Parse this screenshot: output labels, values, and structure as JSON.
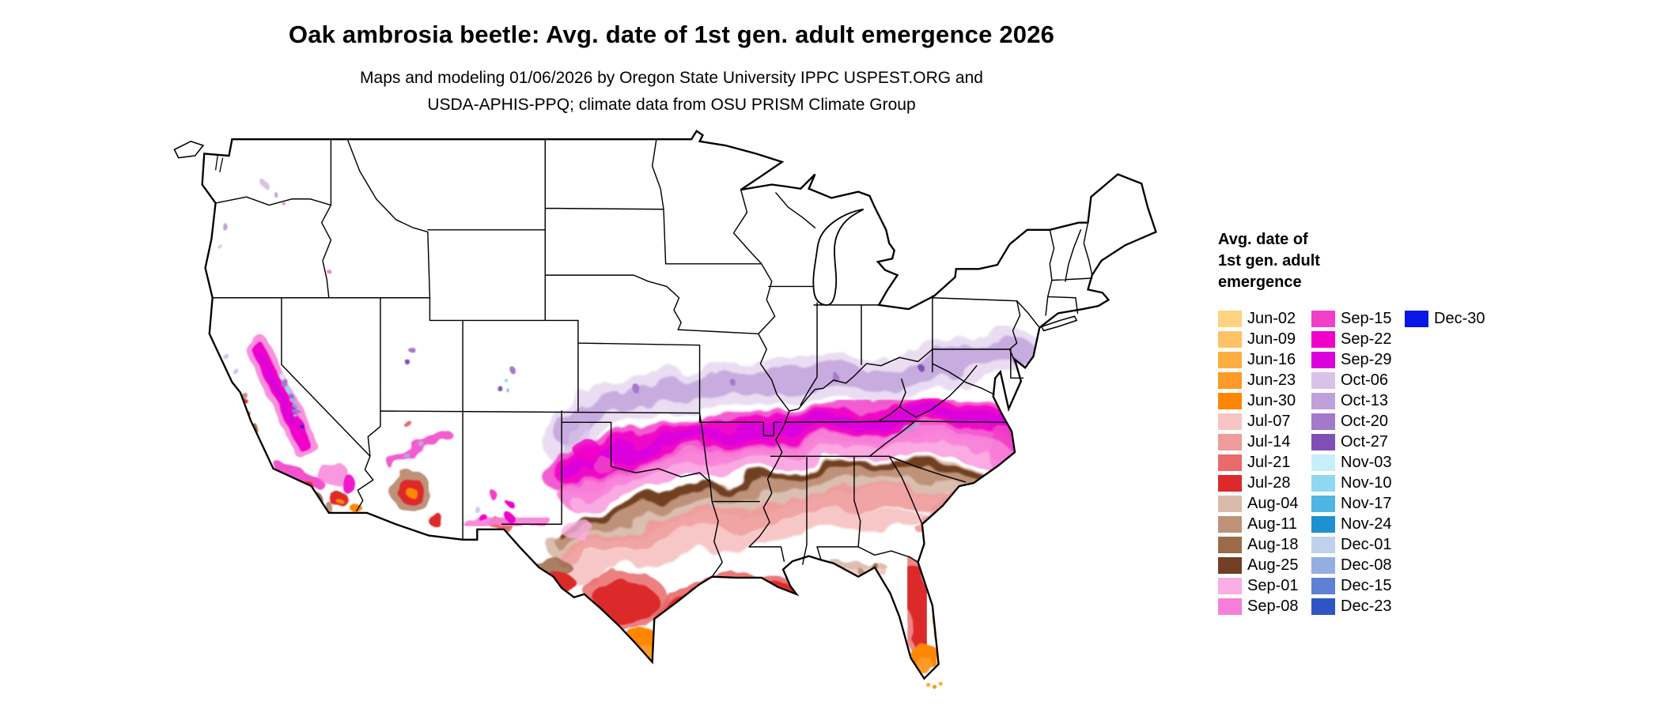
{
  "title": "Oak ambrosia beetle: Avg. date of 1st gen. adult emergence 2026",
  "subtitle": {
    "line1": "Maps and modeling 01/06/2026 by Oregon State University IPPC USPEST.ORG and",
    "line2": "USDA-APHIS-PPQ; climate data from OSU PRISM Climate Group"
  },
  "map": {
    "region": "Contiguous United States",
    "background_color": "#ffffff",
    "boundary_color": "#000000"
  },
  "legend": {
    "title_lines": [
      "Avg. date of",
      "1st gen. adult",
      "emergence"
    ],
    "columns": [
      {
        "entries": [
          {
            "label": "Jun-02",
            "color": "#FFD37F"
          },
          {
            "label": "Jun-09",
            "color": "#FFC266"
          },
          {
            "label": "Jun-16",
            "color": "#FFAE42"
          },
          {
            "label": "Jun-23",
            "color": "#FF9A28"
          },
          {
            "label": "Jun-30",
            "color": "#FF8605"
          },
          {
            "label": "Jul-07",
            "color": "#F7C5C5"
          },
          {
            "label": "Jul-14",
            "color": "#F09B9B"
          },
          {
            "label": "Jul-21",
            "color": "#E96A6A"
          },
          {
            "label": "Jul-28",
            "color": "#DC2A2A"
          },
          {
            "label": "Aug-04",
            "color": "#D9BBAB"
          },
          {
            "label": "Aug-11",
            "color": "#BE9279"
          },
          {
            "label": "Aug-18",
            "color": "#9A6A4A"
          },
          {
            "label": "Aug-25",
            "color": "#713F23"
          },
          {
            "label": "Sep-01",
            "color": "#FBAEE3"
          },
          {
            "label": "Sep-08",
            "color": "#F87FD8"
          }
        ]
      },
      {
        "entries": [
          {
            "label": "Sep-15",
            "color": "#F23FC8"
          },
          {
            "label": "Sep-22",
            "color": "#F000C8"
          },
          {
            "label": "Sep-29",
            "color": "#DC00DC"
          },
          {
            "label": "Oct-06",
            "color": "#D9C2E8"
          },
          {
            "label": "Oct-13",
            "color": "#C0A0DB"
          },
          {
            "label": "Oct-20",
            "color": "#A379CB"
          },
          {
            "label": "Oct-27",
            "color": "#7F4FB5"
          },
          {
            "label": "Nov-03",
            "color": "#C8EEF9"
          },
          {
            "label": "Nov-10",
            "color": "#8FD8F2"
          },
          {
            "label": "Nov-17",
            "color": "#4FB6E4"
          },
          {
            "label": "Nov-24",
            "color": "#1E8FD0"
          },
          {
            "label": "Dec-01",
            "color": "#BFD1EC"
          },
          {
            "label": "Dec-08",
            "color": "#94AEE2"
          },
          {
            "label": "Dec-15",
            "color": "#6080D4"
          },
          {
            "label": "Dec-23",
            "color": "#2F55C4"
          }
        ]
      },
      {
        "entries": [
          {
            "label": "Dec-30",
            "color": "#0A16E6"
          }
        ]
      }
    ]
  }
}
